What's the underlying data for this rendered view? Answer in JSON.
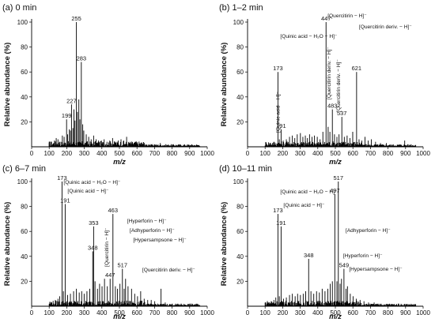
{
  "chart_data": [
    {
      "type": "bar",
      "title": "(a) 0 min",
      "xlabel": "m/z",
      "ylabel": "Relative abundance (%)",
      "xlim": [
        0,
        1000
      ],
      "ylim": [
        0,
        100
      ],
      "xticks": [
        0,
        100,
        200,
        300,
        400,
        500,
        600,
        700,
        800,
        900,
        1000
      ],
      "yticks": [
        20,
        40,
        60,
        80,
        100
      ],
      "peaks": [
        {
          "x": 100,
          "y": 3
        },
        {
          "x": 110,
          "y": 4
        },
        {
          "x": 130,
          "y": 5
        },
        {
          "x": 140,
          "y": 7
        },
        {
          "x": 150,
          "y": 6
        },
        {
          "x": 160,
          "y": 4
        },
        {
          "x": 175,
          "y": 9
        },
        {
          "x": 185,
          "y": 8
        },
        {
          "x": 199,
          "y": 22,
          "label": "199"
        },
        {
          "x": 205,
          "y": 10
        },
        {
          "x": 215,
          "y": 14
        },
        {
          "x": 221,
          "y": 13
        },
        {
          "x": 227,
          "y": 34,
          "label": "227"
        },
        {
          "x": 235,
          "y": 15
        },
        {
          "x": 241,
          "y": 30
        },
        {
          "x": 247,
          "y": 21
        },
        {
          "x": 255,
          "y": 100,
          "label": "255"
        },
        {
          "x": 261,
          "y": 28
        },
        {
          "x": 269,
          "y": 38
        },
        {
          "x": 275,
          "y": 22
        },
        {
          "x": 283,
          "y": 68,
          "label": "283"
        },
        {
          "x": 291,
          "y": 18
        },
        {
          "x": 297,
          "y": 13
        },
        {
          "x": 311,
          "y": 10
        },
        {
          "x": 325,
          "y": 8
        },
        {
          "x": 339,
          "y": 6
        },
        {
          "x": 353,
          "y": 9
        },
        {
          "x": 367,
          "y": 6
        },
        {
          "x": 381,
          "y": 5
        },
        {
          "x": 397,
          "y": 5
        },
        {
          "x": 413,
          "y": 6
        },
        {
          "x": 429,
          "y": 4
        },
        {
          "x": 445,
          "y": 5
        },
        {
          "x": 461,
          "y": 7
        },
        {
          "x": 477,
          "y": 4
        },
        {
          "x": 493,
          "y": 5
        },
        {
          "x": 509,
          "y": 6
        },
        {
          "x": 525,
          "y": 5
        },
        {
          "x": 541,
          "y": 8
        },
        {
          "x": 557,
          "y": 3
        },
        {
          "x": 575,
          "y": 3
        },
        {
          "x": 593,
          "y": 4
        },
        {
          "x": 615,
          "y": 2
        },
        {
          "x": 641,
          "y": 2
        },
        {
          "x": 669,
          "y": 2
        },
        {
          "x": 701,
          "y": 2
        },
        {
          "x": 733,
          "y": 3
        },
        {
          "x": 781,
          "y": 1
        },
        {
          "x": 841,
          "y": 1
        },
        {
          "x": 905,
          "y": 1
        }
      ],
      "annotations": []
    },
    {
      "type": "bar",
      "title": "(b) 1–2 min",
      "xlabel": "m/z",
      "ylabel": "Relative abundance (%)",
      "xlim": [
        0,
        1000
      ],
      "ylim": [
        0,
        100
      ],
      "xticks": [
        0,
        100,
        200,
        300,
        400,
        500,
        600,
        700,
        800,
        900,
        1000
      ],
      "yticks": [
        20,
        40,
        60,
        80,
        100
      ],
      "peaks": [
        {
          "x": 110,
          "y": 2
        },
        {
          "x": 130,
          "y": 3
        },
        {
          "x": 150,
          "y": 4
        },
        {
          "x": 173,
          "y": 60,
          "label": "173"
        },
        {
          "x": 181,
          "y": 6
        },
        {
          "x": 191,
          "y": 14,
          "label": "191"
        },
        {
          "x": 203,
          "y": 5
        },
        {
          "x": 221,
          "y": 6
        },
        {
          "x": 239,
          "y": 8
        },
        {
          "x": 255,
          "y": 9
        },
        {
          "x": 269,
          "y": 7
        },
        {
          "x": 283,
          "y": 10
        },
        {
          "x": 301,
          "y": 11
        },
        {
          "x": 315,
          "y": 8
        },
        {
          "x": 329,
          "y": 9
        },
        {
          "x": 341,
          "y": 7
        },
        {
          "x": 353,
          "y": 10
        },
        {
          "x": 367,
          "y": 8
        },
        {
          "x": 381,
          "y": 9
        },
        {
          "x": 397,
          "y": 8
        },
        {
          "x": 413,
          "y": 6
        },
        {
          "x": 429,
          "y": 12
        },
        {
          "x": 447,
          "y": 100,
          "label": "447"
        },
        {
          "x": 459,
          "y": 16
        },
        {
          "x": 469,
          "y": 12
        },
        {
          "x": 483,
          "y": 30,
          "label": "483"
        },
        {
          "x": 495,
          "y": 10
        },
        {
          "x": 509,
          "y": 8
        },
        {
          "x": 521,
          "y": 10
        },
        {
          "x": 537,
          "y": 24,
          "label": "537"
        },
        {
          "x": 551,
          "y": 8
        },
        {
          "x": 567,
          "y": 9
        },
        {
          "x": 583,
          "y": 7
        },
        {
          "x": 599,
          "y": 12
        },
        {
          "x": 621,
          "y": 60,
          "label": "621"
        },
        {
          "x": 635,
          "y": 6
        },
        {
          "x": 651,
          "y": 5
        },
        {
          "x": 669,
          "y": 8
        },
        {
          "x": 687,
          "y": 5
        },
        {
          "x": 705,
          "y": 6
        },
        {
          "x": 729,
          "y": 4
        },
        {
          "x": 757,
          "y": 3
        },
        {
          "x": 791,
          "y": 3
        },
        {
          "x": 829,
          "y": 2
        },
        {
          "x": 867,
          "y": 2
        },
        {
          "x": 895,
          "y": 5
        },
        {
          "x": 931,
          "y": 2
        }
      ],
      "annotations": [
        {
          "text": "[Quinic acid − H₂O − H]⁻",
          "x": 173,
          "dir": "h"
        },
        {
          "text": "[Quinic acid − H]⁻",
          "x": 191,
          "dir": "v"
        },
        {
          "text": "[Quercitirin − H]⁻",
          "x": 447,
          "dir": "h"
        },
        {
          "text": "[Quercitirin deriv. − H]⁻",
          "x": 483,
          "dir": "v"
        },
        {
          "text": "[Quercitirin deriv. − H]⁻",
          "x": 537,
          "dir": "v"
        },
        {
          "text": "[Quercitirin deriv. − H]⁻",
          "x": 621,
          "dir": "h"
        }
      ]
    },
    {
      "type": "bar",
      "title": "(c) 6–7 min",
      "xlabel": "m/z",
      "ylabel": "Relative abundance (%)",
      "xlim": [
        0,
        1000
      ],
      "ylim": [
        0,
        100
      ],
      "xticks": [
        0,
        100,
        200,
        300,
        400,
        500,
        600,
        700,
        800,
        900,
        1000
      ],
      "yticks": [
        20,
        40,
        60,
        80,
        100
      ],
      "peaks": [
        {
          "x": 115,
          "y": 3
        },
        {
          "x": 135,
          "y": 5
        },
        {
          "x": 150,
          "y": 6
        },
        {
          "x": 160,
          "y": 8
        },
        {
          "x": 173,
          "y": 100,
          "label": "173"
        },
        {
          "x": 181,
          "y": 12
        },
        {
          "x": 191,
          "y": 82,
          "label": "191"
        },
        {
          "x": 205,
          "y": 9
        },
        {
          "x": 221,
          "y": 10
        },
        {
          "x": 239,
          "y": 12
        },
        {
          "x": 255,
          "y": 14
        },
        {
          "x": 271,
          "y": 11
        },
        {
          "x": 285,
          "y": 12
        },
        {
          "x": 299,
          "y": 10
        },
        {
          "x": 315,
          "y": 12
        },
        {
          "x": 331,
          "y": 14
        },
        {
          "x": 348,
          "y": 44,
          "label": "348"
        },
        {
          "x": 353,
          "y": 64,
          "label": "353"
        },
        {
          "x": 361,
          "y": 20
        },
        {
          "x": 375,
          "y": 14
        },
        {
          "x": 387,
          "y": 18
        },
        {
          "x": 401,
          "y": 16
        },
        {
          "x": 415,
          "y": 22
        },
        {
          "x": 431,
          "y": 16
        },
        {
          "x": 447,
          "y": 22,
          "label": "447"
        },
        {
          "x": 463,
          "y": 74,
          "label": "463"
        },
        {
          "x": 477,
          "y": 16
        },
        {
          "x": 489,
          "y": 14
        },
        {
          "x": 503,
          "y": 18
        },
        {
          "x": 517,
          "y": 30,
          "label": "517"
        },
        {
          "x": 527,
          "y": 14
        },
        {
          "x": 535,
          "y": 22
        },
        {
          "x": 549,
          "y": 16
        },
        {
          "x": 569,
          "y": 14
        },
        {
          "x": 587,
          "y": 10
        },
        {
          "x": 603,
          "y": 8
        },
        {
          "x": 621,
          "y": 12
        },
        {
          "x": 641,
          "y": 6
        },
        {
          "x": 661,
          "y": 5
        },
        {
          "x": 681,
          "y": 5
        },
        {
          "x": 701,
          "y": 4
        },
        {
          "x": 737,
          "y": 14
        },
        {
          "x": 761,
          "y": 3
        },
        {
          "x": 801,
          "y": 2
        },
        {
          "x": 851,
          "y": 2
        },
        {
          "x": 901,
          "y": 2
        }
      ],
      "annotations": [
        {
          "text": "[Quinic acid − H₂O − H]⁻",
          "x": 173,
          "dir": "h"
        },
        {
          "text": "[Quinic acid − H]⁻",
          "x": 191,
          "dir": "h"
        },
        {
          "text": "[Quercitirin − H]⁻",
          "x": 447,
          "dir": "v"
        },
        {
          "text": "[Hyperforin − H]⁻",
          "x": 535,
          "dir": "h"
        },
        {
          "text": "[Adhyperforin − H]⁻",
          "x": 549,
          "dir": "h"
        },
        {
          "text": "[Hypersampsone − H]⁻",
          "x": 569,
          "dir": "h"
        },
        {
          "text": "[Quercitirin deriv. − H]⁻",
          "x": 621,
          "dir": "h"
        }
      ]
    },
    {
      "type": "bar",
      "title": "(d) 10–11 min",
      "xlabel": "m/z",
      "ylabel": "Relative abundance (%)",
      "xlim": [
        0,
        1000
      ],
      "ylim": [
        0,
        100
      ],
      "xticks": [
        0,
        100,
        200,
        300,
        400,
        500,
        600,
        700,
        800,
        900,
        1000
      ],
      "yticks": [
        20,
        40,
        60,
        80,
        100
      ],
      "peaks": [
        {
          "x": 115,
          "y": 3
        },
        {
          "x": 135,
          "y": 4
        },
        {
          "x": 150,
          "y": 5
        },
        {
          "x": 161,
          "y": 7
        },
        {
          "x": 173,
          "y": 74,
          "label": "173"
        },
        {
          "x": 181,
          "y": 8
        },
        {
          "x": 191,
          "y": 64,
          "label": "191"
        },
        {
          "x": 205,
          "y": 6
        },
        {
          "x": 221,
          "y": 7
        },
        {
          "x": 239,
          "y": 9
        },
        {
          "x": 255,
          "y": 10
        },
        {
          "x": 271,
          "y": 8
        },
        {
          "x": 285,
          "y": 10
        },
        {
          "x": 301,
          "y": 9
        },
        {
          "x": 317,
          "y": 10
        },
        {
          "x": 331,
          "y": 12
        },
        {
          "x": 348,
          "y": 38,
          "label": "348"
        },
        {
          "x": 361,
          "y": 12
        },
        {
          "x": 377,
          "y": 10
        },
        {
          "x": 393,
          "y": 12
        },
        {
          "x": 409,
          "y": 11
        },
        {
          "x": 425,
          "y": 14
        },
        {
          "x": 441,
          "y": 12
        },
        {
          "x": 457,
          "y": 14
        },
        {
          "x": 471,
          "y": 18
        },
        {
          "x": 483,
          "y": 20
        },
        {
          "x": 497,
          "y": 90,
          "label": "497"
        },
        {
          "x": 509,
          "y": 20
        },
        {
          "x": 517,
          "y": 100,
          "label": "517"
        },
        {
          "x": 527,
          "y": 18
        },
        {
          "x": 535,
          "y": 22
        },
        {
          "x": 549,
          "y": 30,
          "label": "549"
        },
        {
          "x": 561,
          "y": 14
        },
        {
          "x": 569,
          "y": 16
        },
        {
          "x": 585,
          "y": 10
        },
        {
          "x": 601,
          "y": 8
        },
        {
          "x": 619,
          "y": 6
        },
        {
          "x": 641,
          "y": 5
        },
        {
          "x": 663,
          "y": 4
        },
        {
          "x": 689,
          "y": 3
        },
        {
          "x": 721,
          "y": 3
        },
        {
          "x": 761,
          "y": 2
        },
        {
          "x": 809,
          "y": 2
        },
        {
          "x": 861,
          "y": 2
        },
        {
          "x": 911,
          "y": 1
        }
      ],
      "annotations": [
        {
          "text": "[Quinic acid − H₂O − H]⁻",
          "x": 173,
          "dir": "h"
        },
        {
          "text": "[Quinic acid − H]⁻",
          "x": 191,
          "dir": "h"
        },
        {
          "text": "[Adhyperforin − H]⁻",
          "x": 549,
          "dir": "h"
        },
        {
          "text": "[Hyperforin − H]⁻",
          "x": 535,
          "dir": "h"
        },
        {
          "text": "[Hypersampsone − H]⁻",
          "x": 569,
          "dir": "h"
        }
      ]
    }
  ]
}
